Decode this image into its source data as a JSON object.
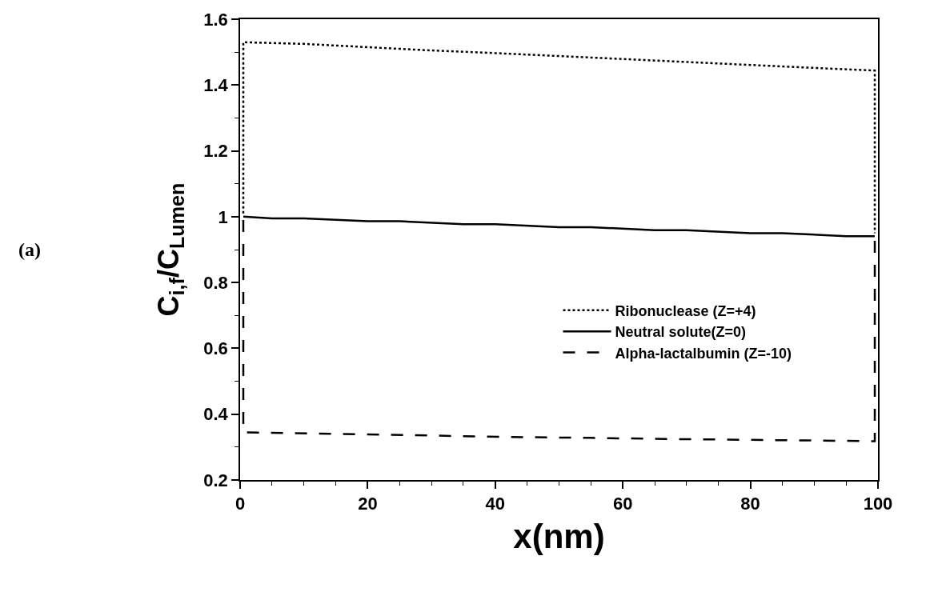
{
  "chart_data": {
    "type": "line",
    "xlabel": "x(nm)",
    "ylabel": "C$_{i,f}$/C$_{Lumen}$",
    "annotations": [
      "(a)"
    ],
    "xlim": [
      0,
      100
    ],
    "ylim": [
      0.2,
      1.6
    ],
    "xticks": [
      0,
      {
        "value": 5,
        "label": null
      },
      {
        "value": 10,
        "label": null
      },
      {
        "value": 15,
        "label": null
      },
      20,
      {
        "value": 25,
        "label": null
      },
      {
        "value": 30,
        "label": null
      },
      {
        "value": 35,
        "label": null
      },
      40,
      {
        "value": 45,
        "label": null
      },
      {
        "value": 50,
        "label": null
      },
      {
        "value": 55,
        "label": null
      },
      60,
      {
        "value": 65,
        "label": null
      },
      {
        "value": 70,
        "label": null
      },
      {
        "value": 75,
        "label": null
      },
      80,
      {
        "value": 85,
        "label": null
      },
      {
        "value": 90,
        "label": null
      },
      {
        "value": 95,
        "label": null
      },
      100
    ],
    "yticks": [
      0.2,
      {
        "value": 0.3,
        "label": null
      },
      0.4,
      {
        "value": 0.5,
        "label": null
      },
      0.6,
      {
        "value": 0.7,
        "label": null
      },
      0.8,
      {
        "value": 0.9,
        "label": null
      },
      1,
      {
        "value": 1.1,
        "label": null
      },
      1.2,
      {
        "value": 1.3,
        "label": null
      },
      1.4,
      {
        "value": 1.5,
        "label": null
      },
      1.6
    ],
    "legend": "right",
    "marker": "none",
    "series": [
      {
        "name": "Ribonuclease (Z=+4)",
        "color": "#000000",
        "line_style": "dotted",
        "x": [
          0.5,
          0.5,
          10,
          20,
          30,
          40,
          50,
          60,
          70,
          80,
          90,
          99.5,
          99.5
        ],
        "values": [
          1.01,
          1.53,
          1.525,
          1.515,
          1.505,
          1.497,
          1.488,
          1.479,
          1.47,
          1.461,
          1.452,
          1.444,
          0.95
        ]
      },
      {
        "name": "Neutral solute(Z=0)",
        "color": "#000000",
        "line_style": "solid",
        "x": [
          0.5,
          5,
          10,
          20,
          25,
          35,
          40,
          50,
          55,
          65,
          70,
          80,
          85,
          95,
          99.5
        ],
        "values": [
          1.0,
          0.995,
          0.995,
          0.986,
          0.986,
          0.977,
          0.977,
          0.968,
          0.968,
          0.959,
          0.959,
          0.95,
          0.95,
          0.941,
          0.941
        ]
      },
      {
        "name": "Alpha-lactalbumin (Z=-10)",
        "color": "#000000",
        "line_style": "dashed",
        "x": [
          0.5,
          0.5,
          15,
          30,
          45,
          55,
          65,
          80,
          99.5,
          99.5
        ],
        "values": [
          0.99,
          0.345,
          0.34,
          0.335,
          0.33,
          0.328,
          0.325,
          0.322,
          0.318,
          0.93
        ]
      }
    ]
  }
}
